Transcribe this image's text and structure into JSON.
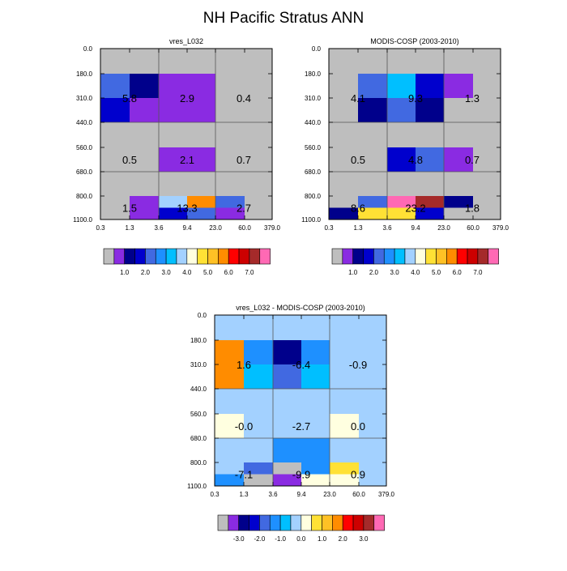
{
  "figure_title": "NH Pacific Stratus ANN",
  "palettes": {
    "abs": [
      "#bebebe",
      "#8a2be2",
      "#00008b",
      "#0000cd",
      "#4169e1",
      "#1e90ff",
      "#00bfff",
      "#a3d1ff",
      "#ffffe0",
      "#ffe135",
      "#ffc125",
      "#ff8c00",
      "#ff0000",
      "#cd0000",
      "#a52a2a",
      "#ff69b4"
    ],
    "diff": [
      "#bebebe",
      "#8a2be2",
      "#00008b",
      "#0000cd",
      "#4169e1",
      "#1e90ff",
      "#00bfff",
      "#a3d1ff",
      "#ffffe0",
      "#ffe135",
      "#ffc125",
      "#ff8c00",
      "#ff0000",
      "#cd0000",
      "#a52a2a",
      "#ff69b4"
    ]
  },
  "chart_data": [
    {
      "type": "heatmap",
      "title": "vres_L032",
      "x_tick_labels": [
        "0.3",
        "1.3",
        "3.6",
        "9.4",
        "23.0",
        "60.0",
        "379.0"
      ],
      "y_tick_labels": [
        "0.0",
        "180.0",
        "310.0",
        "440.0",
        "560.0",
        "680.0",
        "800.0",
        "1100.0"
      ],
      "cell_color_index": [
        [
          0,
          0,
          0,
          0,
          0,
          0
        ],
        [
          4,
          2,
          1,
          1,
          0,
          0
        ],
        [
          3,
          1,
          1,
          1,
          0,
          0
        ],
        [
          0,
          0,
          0,
          0,
          0,
          0
        ],
        [
          0,
          0,
          1,
          1,
          0,
          0
        ],
        [
          0,
          0,
          0,
          0,
          0,
          0
        ],
        [
          0,
          1,
          7,
          11,
          4,
          0
        ],
        [
          0,
          1,
          3,
          4,
          1,
          0
        ]
      ],
      "group_values": [
        [
          "5.8",
          "2.9",
          "0.4"
        ],
        [
          "0.5",
          "2.1",
          "0.7"
        ],
        [
          "1.5",
          "13.3",
          "2.7"
        ]
      ],
      "colorbar_labels": [
        "1.0",
        "2.0",
        "3.0",
        "4.0",
        "5.0",
        "6.0",
        "7.0"
      ],
      "palette": "abs"
    },
    {
      "type": "heatmap",
      "title": "MODIS-COSP (2003-2010)",
      "x_tick_labels": [
        "0.3",
        "1.3",
        "3.6",
        "9.4",
        "23.0",
        "60.0",
        "379.0"
      ],
      "y_tick_labels": [
        "0.0",
        "180.0",
        "310.0",
        "440.0",
        "560.0",
        "680.0",
        "800.0",
        "1100.0"
      ],
      "cell_color_index": [
        [
          0,
          0,
          0,
          0,
          0,
          0
        ],
        [
          0,
          4,
          6,
          3,
          1,
          0
        ],
        [
          0,
          2,
          4,
          2,
          0,
          0
        ],
        [
          0,
          0,
          0,
          0,
          0,
          0
        ],
        [
          0,
          0,
          3,
          4,
          1,
          0
        ],
        [
          0,
          0,
          0,
          0,
          0,
          0
        ],
        [
          0,
          4,
          15,
          14,
          2,
          0
        ],
        [
          2,
          9,
          9,
          3,
          0,
          0
        ]
      ],
      "group_values": [
        [
          "4.1",
          "9.3",
          "1.3"
        ],
        [
          "0.5",
          "4.8",
          "0.7"
        ],
        [
          "8.6",
          "23.2",
          "1.8"
        ]
      ],
      "colorbar_labels": [
        "1.0",
        "2.0",
        "3.0",
        "4.0",
        "5.0",
        "6.0",
        "7.0"
      ],
      "palette": "abs"
    },
    {
      "type": "heatmap",
      "title": "vres_L032 - MODIS-COSP (2003-2010)",
      "x_tick_labels": [
        "0.3",
        "1.3",
        "3.6",
        "9.4",
        "23.0",
        "60.0",
        "379.0"
      ],
      "y_tick_labels": [
        "0.0",
        "180.0",
        "310.0",
        "440.0",
        "560.0",
        "680.0",
        "800.0",
        "1100.0"
      ],
      "cell_color_index": [
        [
          7,
          7,
          7,
          7,
          7,
          7
        ],
        [
          11,
          5,
          2,
          5,
          7,
          7
        ],
        [
          11,
          6,
          4,
          6,
          7,
          7
        ],
        [
          7,
          7,
          7,
          7,
          7,
          7
        ],
        [
          8,
          7,
          7,
          7,
          8,
          7
        ],
        [
          7,
          7,
          5,
          5,
          7,
          7
        ],
        [
          7,
          4,
          0,
          5,
          9,
          7
        ],
        [
          5,
          0,
          1,
          8,
          8,
          7
        ]
      ],
      "group_values": [
        [
          "1.6",
          "-6.4",
          "-0.9"
        ],
        [
          "-0.0",
          "-2.7",
          "0.0"
        ],
        [
          "-7.1",
          "-9.9",
          "0.9"
        ]
      ],
      "colorbar_labels": [
        "-3.0",
        "-2.0",
        "-1.0",
        "0.0",
        "1.0",
        "2.0",
        "3.0"
      ],
      "palette": "diff"
    }
  ]
}
